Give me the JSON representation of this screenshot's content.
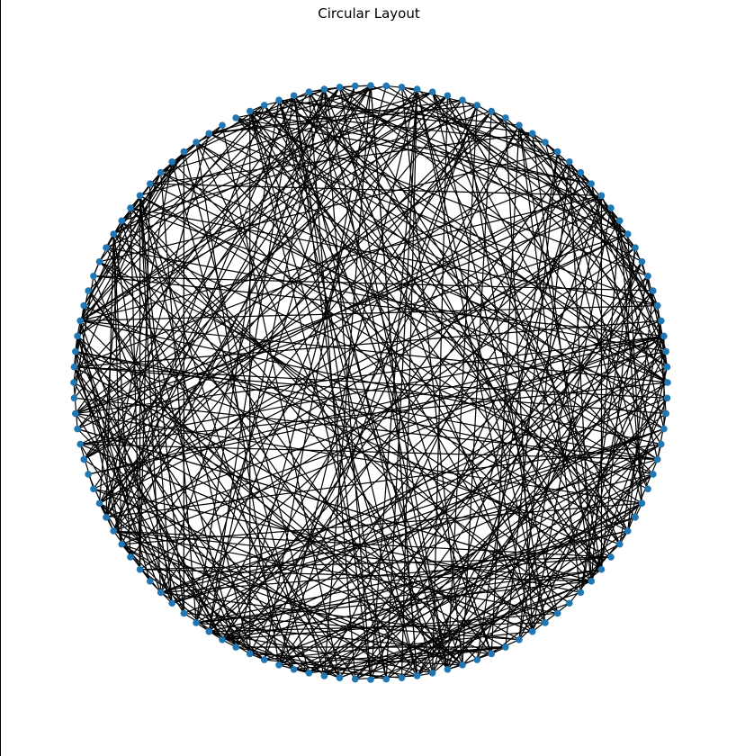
{
  "figure": {
    "title": "Circular Layout"
  },
  "graph": {
    "layout": "circular",
    "node_count": 120,
    "edge_count": 480,
    "node_color": "#1f77b4",
    "edge_color": "#000000",
    "background_color": "#ffffff"
  }
}
